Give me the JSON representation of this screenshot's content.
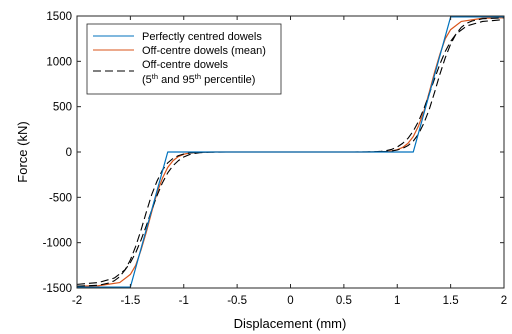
{
  "chart_data": {
    "type": "line",
    "xlabel": "Displacement (mm)",
    "ylabel": "Force (kN)",
    "xlim": [
      -2,
      2
    ],
    "ylim": [
      -1500,
      1500
    ],
    "xticks": [
      -2,
      -1.5,
      -1,
      -0.5,
      0,
      0.5,
      1,
      1.5,
      2
    ],
    "xtick_labels": [
      "-2",
      "-1.5",
      "-1",
      "-0.5",
      "0",
      "0.5",
      "1",
      "1.5",
      "2"
    ],
    "yticks": [
      -1500,
      -1000,
      -500,
      0,
      500,
      1000,
      1500
    ],
    "ytick_labels": [
      "-1500",
      "-1000",
      "-500",
      "0",
      "500",
      "1000",
      "1500"
    ],
    "grid": false,
    "legend_position": "top-left",
    "series": [
      {
        "name": "Perfectly centred dowels",
        "color": "#0072BD",
        "style": "solid",
        "x": [
          -2,
          -1.5,
          -1.15,
          1.15,
          1.5,
          2
        ],
        "y": [
          -1490,
          -1490,
          0,
          0,
          1490,
          1490
        ]
      },
      {
        "name": "Off-centre dowels (mean)",
        "color": "#D95319",
        "style": "solid",
        "x": [
          -2,
          -1.8,
          -1.6,
          -1.5,
          -1.45,
          -1.4,
          -1.35,
          -1.3,
          -1.25,
          -1.2,
          -1.15,
          -1.1,
          -1.05,
          -1.0,
          -0.95,
          -0.9,
          -0.85,
          -0.8,
          -0.7,
          -0.6,
          0,
          0.6,
          0.7,
          0.8,
          0.85,
          0.9,
          0.95,
          1.0,
          1.05,
          1.1,
          1.15,
          1.2,
          1.25,
          1.3,
          1.35,
          1.4,
          1.45,
          1.5,
          1.6,
          1.8,
          2
        ],
        "y": [
          -1480,
          -1475,
          -1440,
          -1350,
          -1250,
          -1080,
          -880,
          -660,
          -450,
          -290,
          -170,
          -95,
          -50,
          -25,
          -12,
          -6,
          -3,
          -1,
          0,
          0,
          0,
          0,
          0,
          1,
          3,
          6,
          12,
          25,
          50,
          95,
          170,
          290,
          450,
          660,
          880,
          1080,
          1250,
          1350,
          1440,
          1475,
          1480
        ]
      },
      {
        "name": "Off-centre dowels (5th and 95th percentile)",
        "color": "#000000",
        "style": "dashed",
        "x": [
          -2,
          -1.8,
          -1.65,
          -1.55,
          -1.5,
          -1.45,
          -1.4,
          -1.35,
          -1.3,
          -1.25,
          -1.2,
          -1.15,
          -1.1,
          -1.05,
          -1.0,
          -0.95,
          -0.9,
          -0.85,
          -0.8,
          -0.75,
          -0.7,
          -0.6,
          0,
          0.6,
          0.7,
          0.75,
          0.8,
          0.85,
          0.9,
          0.95,
          1.0,
          1.05,
          1.1,
          1.15,
          1.2,
          1.25,
          1.3,
          1.35,
          1.4,
          1.45,
          1.5,
          1.55,
          1.65,
          1.8,
          2
        ],
        "y": [
          -1460,
          -1440,
          -1390,
          -1300,
          -1220,
          -1110,
          -970,
          -810,
          -640,
          -480,
          -340,
          -230,
          -150,
          -95,
          -55,
          -30,
          -16,
          -8,
          -4,
          -2,
          -1,
          0,
          0,
          0,
          1,
          2,
          4,
          8,
          16,
          30,
          55,
          95,
          150,
          230,
          340,
          480,
          640,
          810,
          970,
          1110,
          1220,
          1300,
          1390,
          1440,
          1460
        ]
      },
      {
        "name": "",
        "color": "#000000",
        "style": "dashed",
        "x": [
          -2,
          -1.8,
          -1.7,
          -1.65,
          -1.6,
          -1.55,
          -1.5,
          -1.45,
          -1.4,
          -1.35,
          -1.3,
          -1.25,
          -1.2,
          -1.15,
          -1.1,
          -1.05,
          -1.0,
          -0.95,
          -0.9,
          -0.85,
          -0.8,
          -0.75,
          -0.7,
          -0.6,
          0,
          0.6,
          0.7,
          0.75,
          0.8,
          0.85,
          0.9,
          0.95,
          1.0,
          1.05,
          1.1,
          1.15,
          1.2,
          1.25,
          1.3,
          1.35,
          1.4,
          1.45,
          1.5,
          1.55,
          1.6,
          1.65,
          1.7,
          1.8,
          2
        ],
        "y": [
          -1480,
          -1470,
          -1445,
          -1420,
          -1375,
          -1300,
          -1190,
          -1040,
          -860,
          -660,
          -470,
          -320,
          -200,
          -120,
          -70,
          -40,
          -22,
          -12,
          -6,
          -3,
          -1.5,
          -0.5,
          0,
          0,
          0,
          0,
          0,
          0.5,
          1.5,
          3,
          6,
          12,
          22,
          40,
          70,
          120,
          200,
          320,
          470,
          660,
          860,
          1040,
          1190,
          1300,
          1375,
          1420,
          1445,
          1470,
          1480
        ]
      }
    ],
    "legend_entries": [
      {
        "label": "Perfectly centred dowels"
      },
      {
        "label": "Off-centre dowels (mean)"
      },
      {
        "line1": "Off-centre dowels",
        "line2_a": "(5",
        "sup_a": "th",
        "line2_b": " and 95",
        "sup_b": "th",
        "line2_c": " percentile)"
      }
    ]
  }
}
